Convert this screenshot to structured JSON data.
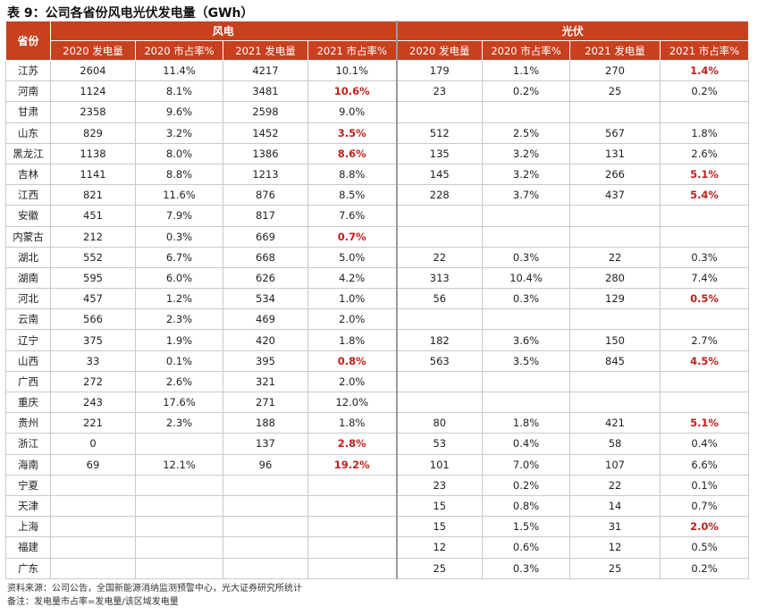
{
  "title": "表 9：公司各省份风电光伏发电量（GWh）",
  "header": {
    "province": "省份",
    "wind": "风电",
    "solar": "光伏",
    "columns": [
      "2020 发电量",
      "2020 市占率%",
      "2021 发电量",
      "2021 市占率%",
      "2020 发电量",
      "2020 市占率%",
      "2021 发电量",
      "2021 市占率%"
    ]
  },
  "highlight_color": "#c0201b",
  "header_color": "#c8401e",
  "rows": [
    {
      "p": "江苏",
      "c": [
        "2604",
        "11.4%",
        "4217",
        "10.1%",
        "179",
        "1.1%",
        "270",
        "1.4%"
      ],
      "h": [
        7
      ]
    },
    {
      "p": "河南",
      "c": [
        "1124",
        "8.1%",
        "3481",
        "10.6%",
        "23",
        "0.2%",
        "25",
        "0.2%"
      ],
      "h": [
        3
      ]
    },
    {
      "p": "甘肃",
      "c": [
        "2358",
        "9.6%",
        "2598",
        "9.0%",
        "",
        "",
        "",
        ""
      ],
      "h": []
    },
    {
      "p": "山东",
      "c": [
        "829",
        "3.2%",
        "1452",
        "3.5%",
        "512",
        "2.5%",
        "567",
        "1.8%"
      ],
      "h": [
        3
      ]
    },
    {
      "p": "黑龙江",
      "c": [
        "1138",
        "8.0%",
        "1386",
        "8.6%",
        "135",
        "3.2%",
        "131",
        "2.6%"
      ],
      "h": [
        3
      ]
    },
    {
      "p": "吉林",
      "c": [
        "1141",
        "8.8%",
        "1213",
        "8.8%",
        "145",
        "3.2%",
        "266",
        "5.1%"
      ],
      "h": [
        7
      ]
    },
    {
      "p": "江西",
      "c": [
        "821",
        "11.6%",
        "876",
        "8.5%",
        "228",
        "3.7%",
        "437",
        "5.4%"
      ],
      "h": [
        7
      ]
    },
    {
      "p": "安徽",
      "c": [
        "451",
        "7.9%",
        "817",
        "7.6%",
        "",
        "",
        "",
        ""
      ],
      "h": []
    },
    {
      "p": "内蒙古",
      "c": [
        "212",
        "0.3%",
        "669",
        "0.7%",
        "",
        "",
        "",
        ""
      ],
      "h": [
        3
      ]
    },
    {
      "p": "湖北",
      "c": [
        "552",
        "6.7%",
        "668",
        "5.0%",
        "22",
        "0.3%",
        "22",
        "0.3%"
      ],
      "h": []
    },
    {
      "p": "湖南",
      "c": [
        "595",
        "6.0%",
        "626",
        "4.2%",
        "313",
        "10.4%",
        "280",
        "7.4%"
      ],
      "h": []
    },
    {
      "p": "河北",
      "c": [
        "457",
        "1.2%",
        "534",
        "1.0%",
        "56",
        "0.3%",
        "129",
        "0.5%"
      ],
      "h": [
        7
      ]
    },
    {
      "p": "云南",
      "c": [
        "566",
        "2.3%",
        "469",
        "2.0%",
        "",
        "",
        "",
        ""
      ],
      "h": []
    },
    {
      "p": "辽宁",
      "c": [
        "375",
        "1.9%",
        "420",
        "1.8%",
        "182",
        "3.6%",
        "150",
        "2.7%"
      ],
      "h": []
    },
    {
      "p": "山西",
      "c": [
        "33",
        "0.1%",
        "395",
        "0.8%",
        "563",
        "3.5%",
        "845",
        "4.5%"
      ],
      "h": [
        3,
        7
      ]
    },
    {
      "p": "广西",
      "c": [
        "272",
        "2.6%",
        "321",
        "2.0%",
        "",
        "",
        "",
        ""
      ],
      "h": []
    },
    {
      "p": "重庆",
      "c": [
        "243",
        "17.6%",
        "271",
        "12.0%",
        "",
        "",
        "",
        ""
      ],
      "h": []
    },
    {
      "p": "贵州",
      "c": [
        "221",
        "2.3%",
        "188",
        "1.8%",
        "80",
        "1.8%",
        "421",
        "5.1%"
      ],
      "h": [
        7
      ]
    },
    {
      "p": "浙江",
      "c": [
        "0",
        "",
        "137",
        "2.8%",
        "53",
        "0.4%",
        "58",
        "0.4%"
      ],
      "h": [
        3
      ]
    },
    {
      "p": "海南",
      "c": [
        "69",
        "12.1%",
        "96",
        "19.2%",
        "101",
        "7.0%",
        "107",
        "6.6%"
      ],
      "h": [
        3
      ]
    },
    {
      "p": "宁夏",
      "c": [
        "",
        "",
        "",
        "",
        "23",
        "0.2%",
        "22",
        "0.1%"
      ],
      "h": []
    },
    {
      "p": "天津",
      "c": [
        "",
        "",
        "",
        "",
        "15",
        "0.8%",
        "14",
        "0.7%"
      ],
      "h": []
    },
    {
      "p": "上海",
      "c": [
        "",
        "",
        "",
        "",
        "15",
        "1.5%",
        "31",
        "2.0%"
      ],
      "h": [
        7
      ]
    },
    {
      "p": "福建",
      "c": [
        "",
        "",
        "",
        "",
        "12",
        "0.6%",
        "12",
        "0.5%"
      ],
      "h": []
    },
    {
      "p": "广东",
      "c": [
        "",
        "",
        "",
        "",
        "25",
        "0.3%",
        "25",
        "0.2%"
      ],
      "h": []
    }
  ],
  "notes": [
    "资料来源：公司公告，全国新能源消纳监测预警中心，光大证券研究所统计",
    "备注：发电量市占率=发电量/该区域发电量"
  ]
}
